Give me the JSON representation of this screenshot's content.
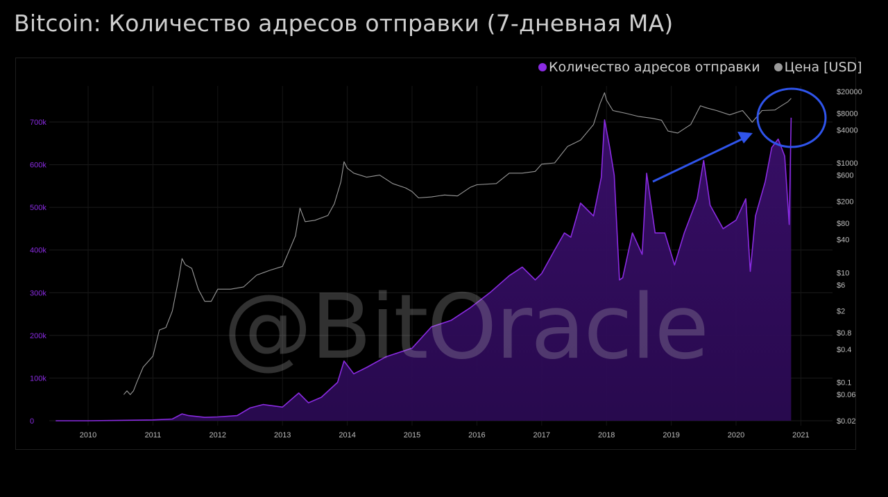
{
  "title": "Bitcoin: Количество адресов отправки (7-дневная MA)",
  "watermark": "@BitOracle",
  "legend": {
    "addresses_label": "Количество адресов отправки",
    "price_label": "Цена [USD]"
  },
  "colors": {
    "addresses": "#8a2be2",
    "price": "#9a9a9a",
    "annotation": "#2f54eb",
    "background": "#000000"
  },
  "chart_data": {
    "type": "area",
    "title": "Bitcoin: Количество адресов отправки (7-дневная MA)",
    "x_ticks": [
      "2010",
      "2011",
      "2012",
      "2013",
      "2014",
      "2015",
      "2016",
      "2017",
      "2018",
      "2019",
      "2020",
      "2021"
    ],
    "y_left_ticks": [
      "0",
      "100k",
      "200k",
      "300k",
      "400k",
      "500k",
      "600k",
      "700k"
    ],
    "y_left_range": [
      0,
      800000
    ],
    "y_right_ticks": [
      "$20000",
      "$8000",
      "$4000",
      "$1000",
      "$600",
      "$200",
      "$80",
      "$40",
      "$10",
      "$6",
      "$2",
      "$0.8",
      "$0.4",
      "$0.1",
      "$0.06",
      "$0.02"
    ],
    "y_right_scale": "log",
    "grid": true,
    "legend_position": "top-right",
    "series": [
      {
        "name": "Количество адресов отправки",
        "axis": "left",
        "x": [
          2009.5,
          2010.0,
          2010.5,
          2011.0,
          2011.3,
          2011.45,
          2011.55,
          2011.8,
          2012.0,
          2012.3,
          2012.5,
          2012.7,
          2013.0,
          2013.25,
          2013.4,
          2013.6,
          2013.85,
          2013.95,
          2014.1,
          2014.3,
          2014.6,
          2015.0,
          2015.3,
          2015.6,
          2015.9,
          2016.2,
          2016.5,
          2016.7,
          2016.9,
          2017.0,
          2017.2,
          2017.35,
          2017.45,
          2017.6,
          2017.8,
          2017.92,
          2017.97,
          2018.05,
          2018.12,
          2018.2,
          2018.25,
          2018.4,
          2018.55,
          2018.62,
          2018.75,
          2018.9,
          2019.05,
          2019.2,
          2019.4,
          2019.5,
          2019.6,
          2019.8,
          2020.0,
          2020.15,
          2020.22,
          2020.3,
          2020.45,
          2020.55,
          2020.65,
          2020.75,
          2020.82,
          2020.85
        ],
        "y": [
          0,
          0,
          1000,
          2000,
          4000,
          16000,
          12000,
          8000,
          9000,
          12000,
          30000,
          38000,
          32000,
          65000,
          42000,
          55000,
          90000,
          140000,
          110000,
          125000,
          150000,
          170000,
          220000,
          235000,
          265000,
          300000,
          340000,
          360000,
          330000,
          345000,
          400000,
          440000,
          430000,
          510000,
          480000,
          570000,
          705000,
          640000,
          575000,
          330000,
          335000,
          440000,
          390000,
          580000,
          440000,
          440000,
          365000,
          440000,
          520000,
          610000,
          505000,
          450000,
          470000,
          520000,
          350000,
          480000,
          560000,
          640000,
          660000,
          620000,
          460000,
          710000
        ]
      },
      {
        "name": "Цена [USD]",
        "axis": "right",
        "x": [
          2010.55,
          2010.6,
          2010.65,
          2010.7,
          2010.75,
          2010.85,
          2011.0,
          2011.1,
          2011.2,
          2011.3,
          2011.4,
          2011.45,
          2011.5,
          2011.6,
          2011.7,
          2011.8,
          2011.9,
          2012.0,
          2012.2,
          2012.4,
          2012.6,
          2012.8,
          2013.0,
          2013.2,
          2013.27,
          2013.35,
          2013.5,
          2013.7,
          2013.8,
          2013.9,
          2013.95,
          2014.0,
          2014.1,
          2014.3,
          2014.5,
          2014.7,
          2014.9,
          2015.0,
          2015.1,
          2015.3,
          2015.5,
          2015.7,
          2015.9,
          2016.0,
          2016.3,
          2016.5,
          2016.7,
          2016.9,
          2017.0,
          2017.2,
          2017.4,
          2017.6,
          2017.8,
          2017.9,
          2017.97,
          2018.0,
          2018.1,
          2018.3,
          2018.5,
          2018.7,
          2018.85,
          2018.95,
          2019.1,
          2019.3,
          2019.45,
          2019.55,
          2019.7,
          2019.9,
          2020.1,
          2020.2,
          2020.25,
          2020.4,
          2020.6,
          2020.7,
          2020.8,
          2020.85
        ],
        "y": [
          0.06,
          0.07,
          0.06,
          0.07,
          0.1,
          0.19,
          0.3,
          0.9,
          1,
          2,
          8,
          18,
          14,
          12,
          5,
          3,
          3,
          5,
          5,
          5.5,
          9,
          11,
          13,
          47,
          150,
          85,
          90,
          110,
          180,
          450,
          1050,
          800,
          650,
          550,
          600,
          420,
          350,
          300,
          230,
          240,
          260,
          250,
          360,
          400,
          420,
          650,
          650,
          700,
          950,
          1000,
          2000,
          2600,
          5000,
          12000,
          19000,
          14000,
          9000,
          8000,
          7000,
          6500,
          6000,
          3800,
          3500,
          5000,
          11000,
          10000,
          9000,
          7500,
          9000,
          6500,
          5500,
          9000,
          9200,
          11000,
          13000,
          15000
        ],
        "annotation": "circled recent price near top-right, arrow pointing to it"
      }
    ]
  }
}
